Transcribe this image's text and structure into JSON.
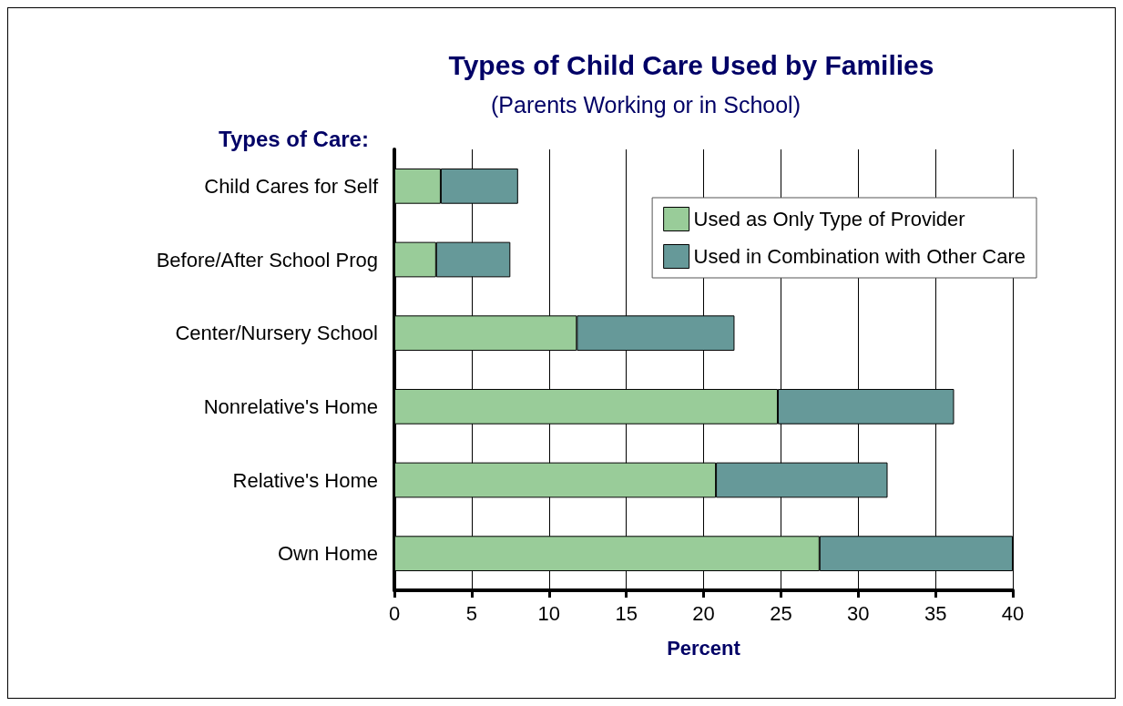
{
  "chart_data": {
    "type": "bar",
    "orientation": "horizontal",
    "stacked": true,
    "title": "Types of Child Care Used by Families",
    "subtitle": "(Parents Working or in School)",
    "ylabel": "Types of Care:",
    "xlabel": "Percent",
    "categories": [
      "Child Cares for Self",
      "Before/After School Prog",
      "Center/Nursery School",
      "Nonrelative's Home",
      "Relative's Home",
      "Own Home"
    ],
    "series": [
      {
        "name": "Used as Only Type of Provider",
        "color": "#99cc99",
        "values": [
          3,
          2.7,
          11.8,
          24.8,
          20.8,
          27.5
        ]
      },
      {
        "name": "Used in Combination with Other Care",
        "color": "#669999",
        "values": [
          5,
          4.8,
          10.2,
          11.4,
          11.1,
          12.5
        ]
      }
    ],
    "xlim": [
      0,
      40
    ],
    "xticks": [
      0,
      5,
      10,
      15,
      20,
      25,
      30,
      35,
      40
    ],
    "grid": "x",
    "legend": "top right"
  }
}
